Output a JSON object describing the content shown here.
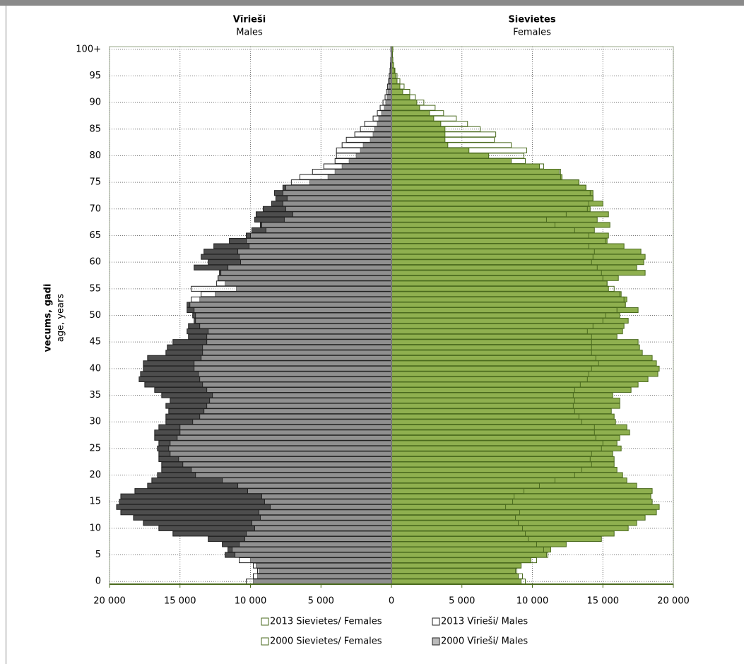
{
  "chart_data": {
    "type": "bar",
    "orientation": "horizontal",
    "left_title": "Vīrieši",
    "left_subtitle": "Males",
    "right_title": "Sievietes",
    "right_subtitle": "Females",
    "y_label": "vecums, gadi",
    "y_sublabel": "age, years",
    "categories": [
      "0",
      null,
      null,
      null,
      null,
      "5",
      null,
      null,
      null,
      null,
      "10",
      null,
      null,
      null,
      null,
      "15",
      null,
      null,
      null,
      null,
      "20",
      null,
      null,
      null,
      null,
      "25",
      null,
      null,
      null,
      null,
      "30",
      null,
      null,
      null,
      null,
      "35",
      null,
      null,
      null,
      null,
      "40",
      null,
      null,
      null,
      null,
      "45",
      null,
      null,
      null,
      null,
      "50",
      null,
      null,
      null,
      null,
      "55",
      null,
      null,
      null,
      null,
      "60",
      null,
      null,
      null,
      null,
      "65",
      null,
      null,
      null,
      null,
      "70",
      null,
      null,
      null,
      null,
      "75",
      null,
      null,
      null,
      null,
      "80",
      null,
      null,
      null,
      null,
      "85",
      null,
      null,
      null,
      null,
      "90",
      null,
      null,
      null,
      null,
      "95",
      null,
      null,
      null,
      null,
      "100+"
    ],
    "xlim": [
      -20000,
      20000
    ],
    "xticks": [
      {
        "value": -20000,
        "label": "20 000"
      },
      {
        "value": -15000,
        "label": "15 000"
      },
      {
        "value": -10000,
        "label": "10 000"
      },
      {
        "value": -5000,
        "label": "5 000"
      },
      0,
      {
        "value": 5000,
        "label": "5 000"
      },
      {
        "value": 10000,
        "label": "10 000"
      },
      {
        "value": 15000,
        "label": "15 000"
      },
      {
        "value": 20000,
        "label": "20 000"
      }
    ],
    "grid": true,
    "legend": "bottom",
    "series": [
      {
        "name": "2013  Sievietes/ Females",
        "color": "#ffffff",
        "values": [
          9500,
          9300,
          8900,
          9200,
          10300,
          11100,
          10800,
          10300,
          9700,
          9500,
          9300,
          9000,
          8800,
          9100,
          8100,
          8600,
          8700,
          9400,
          10500,
          11600,
          13000,
          13500,
          14200,
          14100,
          14200,
          14900,
          15000,
          14500,
          14400,
          14400,
          13500,
          13300,
          13000,
          12900,
          13000,
          12900,
          13000,
          13400,
          13900,
          14000,
          14200,
          14700,
          14500,
          14200,
          14200,
          14200,
          14200,
          13900,
          14300,
          15000,
          15200,
          16000,
          16600,
          16500,
          16200,
          15800,
          15300,
          15000,
          14900,
          14600,
          14200,
          14300,
          14400,
          14000,
          15200,
          14000,
          13000,
          11600,
          11000,
          12400,
          13900,
          14000,
          14300,
          14100,
          13800,
          13300,
          12000,
          12000,
          10800,
          9500,
          9400,
          9600,
          8500,
          7300,
          7400,
          6300,
          5400,
          4600,
          3700,
          3100,
          2300,
          1700,
          1300,
          900,
          600,
          400,
          250,
          150,
          100,
          60,
          100
        ]
      },
      {
        "name": "2013 Vīrieši/ Males",
        "color": "#ffffff",
        "values": [
          -10300,
          -9800,
          -9500,
          -9800,
          -10800,
          -11100,
          -11300,
          -10800,
          -10400,
          -10300,
          -9700,
          -9900,
          -9300,
          -9400,
          -8600,
          -9000,
          -9200,
          -10200,
          -10900,
          -12000,
          -13900,
          -14200,
          -14800,
          -15100,
          -15700,
          -15800,
          -15700,
          -15200,
          -15000,
          -15000,
          -14100,
          -13600,
          -13300,
          -13100,
          -12900,
          -12700,
          -13100,
          -13400,
          -13600,
          -13700,
          -14000,
          -14000,
          -13500,
          -13400,
          -13400,
          -13100,
          -13100,
          -13000,
          -13600,
          -13900,
          -13900,
          -14000,
          -14300,
          -14200,
          -13500,
          -14200,
          -12400,
          -12300,
          -12100,
          -11600,
          -10700,
          -10800,
          -10900,
          -10100,
          -10300,
          -10000,
          -8900,
          -9200,
          -7600,
          -7000,
          -7500,
          -7700,
          -7400,
          -7700,
          -7500,
          -7100,
          -6500,
          -5600,
          -4800,
          -4000,
          -3900,
          -3900,
          -3500,
          -3200,
          -2600,
          -2200,
          -1900,
          -1300,
          -1000,
          -800,
          -600,
          -450,
          -350,
          -280,
          -200,
          -160,
          -100,
          -70,
          -50,
          -30,
          -40
        ]
      },
      {
        "name": "2000 Sievietes/ Females",
        "color": "#8fb04f",
        "values": [
          9200,
          9000,
          8800,
          9200,
          9900,
          11000,
          11300,
          12400,
          14900,
          15800,
          16800,
          17400,
          18000,
          18800,
          19000,
          18500,
          18400,
          18500,
          17400,
          16700,
          16400,
          16000,
          15800,
          15800,
          15700,
          16300,
          16000,
          16200,
          16900,
          16700,
          15900,
          15800,
          15600,
          16200,
          16200,
          15700,
          17000,
          17500,
          18200,
          18900,
          19000,
          18800,
          18500,
          17800,
          17600,
          17500,
          16000,
          16400,
          16500,
          16800,
          16200,
          17500,
          16600,
          16700,
          16300,
          15400,
          15300,
          16100,
          18000,
          17400,
          17900,
          18000,
          17700,
          16500,
          15300,
          15400,
          14400,
          15500,
          14600,
          15400,
          14100,
          15000,
          14300,
          14300,
          13800,
          13300,
          12100,
          11900,
          10500,
          8500,
          6900,
          5500,
          4000,
          3800,
          3800,
          3800,
          3500,
          3000,
          2700,
          2000,
          1800,
          1300,
          800,
          600,
          400,
          300,
          200,
          150,
          100,
          80,
          100
        ]
      },
      {
        "name": "2000 Vīrieši/ Males",
        "color": "#4d4d4d",
        "values": [
          -9800,
          -9500,
          -9400,
          -9600,
          -10000,
          -11800,
          -11600,
          -12000,
          -13000,
          -15500,
          -16500,
          -17600,
          -18300,
          -19200,
          -19500,
          -19300,
          -19200,
          -18200,
          -17300,
          -17000,
          -16600,
          -16300,
          -16300,
          -16500,
          -16500,
          -16600,
          -16500,
          -16800,
          -16800,
          -16500,
          -16000,
          -16000,
          -15800,
          -16000,
          -15700,
          -16300,
          -16800,
          -17500,
          -17900,
          -17800,
          -17600,
          -17600,
          -17300,
          -16000,
          -15900,
          -15500,
          -14400,
          -14500,
          -14400,
          -14000,
          -14100,
          -14500,
          -14500,
          -13600,
          -12500,
          -11000,
          -11800,
          -12300,
          -12200,
          -14000,
          -13000,
          -13500,
          -13300,
          -12600,
          -11500,
          -10300,
          -9900,
          -9300,
          -9700,
          -9600,
          -9100,
          -8500,
          -8200,
          -8300,
          -7700,
          -5800,
          -4500,
          -4000,
          -3500,
          -3000,
          -2500,
          -2200,
          -2000,
          -1500,
          -1300,
          -1200,
          -1000,
          -900,
          -700,
          -500,
          -400,
          -300,
          -250,
          -200,
          -150,
          -100,
          -70,
          -50,
          -30,
          -20,
          -30
        ]
      }
    ]
  }
}
